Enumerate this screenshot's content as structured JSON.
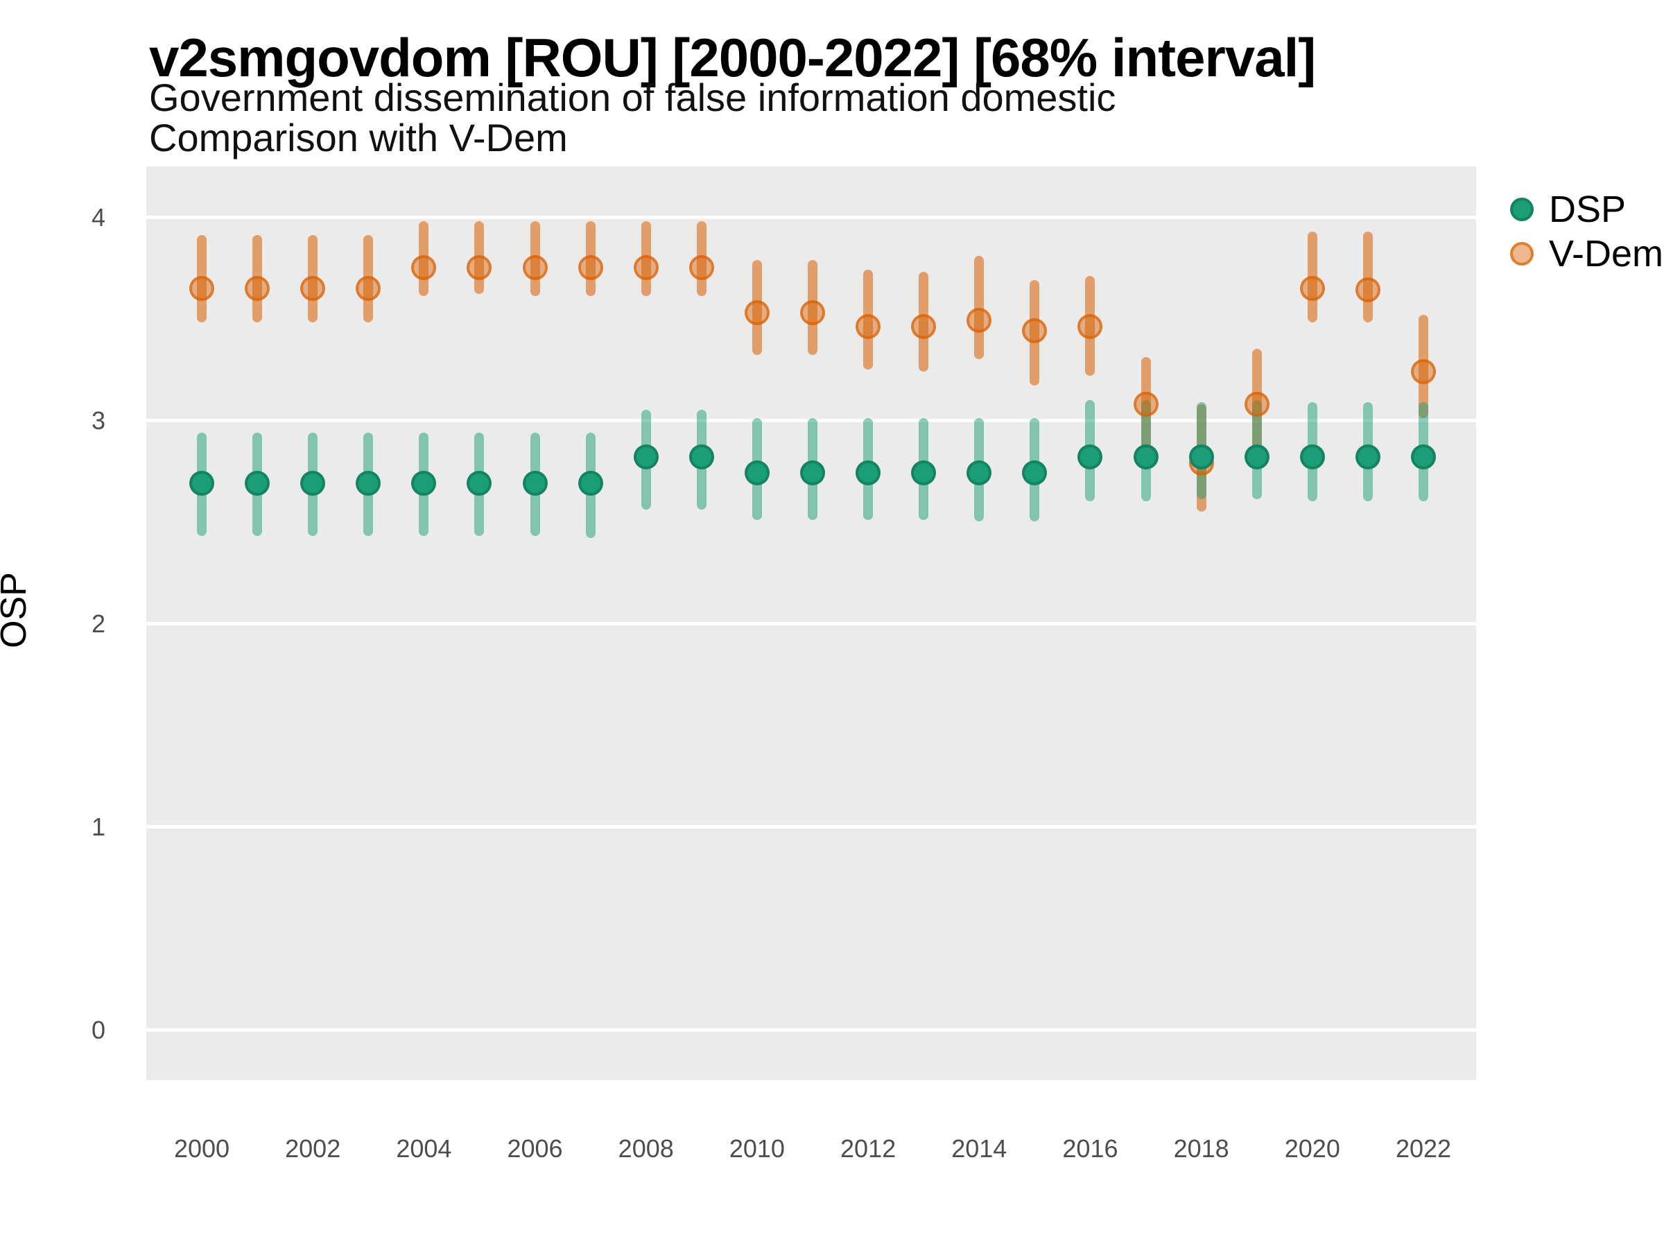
{
  "header": {
    "title": "v2smgovdom [ROU] [2000-2022] [68% interval]",
    "subtitle_line1": "Government dissemination of false information domestic",
    "subtitle_line2": "Comparison with V-Dem"
  },
  "axes": {
    "y_label": "OSP",
    "y_ticks": [
      "0",
      "1",
      "2",
      "3",
      "4"
    ],
    "x_ticks": [
      "2000",
      "2002",
      "2004",
      "2006",
      "2008",
      "2010",
      "2012",
      "2014",
      "2016",
      "2018",
      "2020",
      "2022"
    ]
  },
  "legend": {
    "position": "right",
    "items": [
      {
        "label": "DSP",
        "color": "#1B9E77"
      },
      {
        "label": "V-Dem",
        "color": "#D95F02"
      }
    ]
  },
  "chart_data": {
    "type": "pointrange",
    "title": "v2smgovdom [ROU] [2000-2022] [68% interval]",
    "subtitle": "Government dissemination of false information domestic — Comparison with V-Dem",
    "xlabel": "",
    "ylabel": "OSP",
    "x_range_years": [
      2000,
      2022
    ],
    "ylim": [
      -0.25,
      4.25
    ],
    "y_gridlines": [
      0,
      1,
      2,
      3,
      4
    ],
    "grid": "horizontal-only",
    "panel_background": "#EBEBEB",
    "legend_position": "right-top",
    "interval_level": "68%",
    "years": [
      2000,
      2001,
      2002,
      2003,
      2004,
      2005,
      2006,
      2007,
      2008,
      2009,
      2010,
      2011,
      2012,
      2013,
      2014,
      2015,
      2016,
      2017,
      2018,
      2019,
      2020,
      2021,
      2022
    ],
    "series": [
      {
        "name": "DSP",
        "color": "#1B9E77",
        "points": [
          {
            "year": 2000,
            "est": 2.69,
            "lo": 2.43,
            "hi": 2.94
          },
          {
            "year": 2001,
            "est": 2.69,
            "lo": 2.43,
            "hi": 2.94
          },
          {
            "year": 2002,
            "est": 2.69,
            "lo": 2.43,
            "hi": 2.94
          },
          {
            "year": 2003,
            "est": 2.69,
            "lo": 2.43,
            "hi": 2.94
          },
          {
            "year": 2004,
            "est": 2.69,
            "lo": 2.43,
            "hi": 2.94
          },
          {
            "year": 2005,
            "est": 2.69,
            "lo": 2.43,
            "hi": 2.94
          },
          {
            "year": 2006,
            "est": 2.69,
            "lo": 2.43,
            "hi": 2.94
          },
          {
            "year": 2007,
            "est": 2.69,
            "lo": 2.42,
            "hi": 2.94
          },
          {
            "year": 2008,
            "est": 2.82,
            "lo": 2.56,
            "hi": 3.05
          },
          {
            "year": 2009,
            "est": 2.82,
            "lo": 2.56,
            "hi": 3.05
          },
          {
            "year": 2010,
            "est": 2.74,
            "lo": 2.51,
            "hi": 3.01
          },
          {
            "year": 2011,
            "est": 2.74,
            "lo": 2.51,
            "hi": 3.01
          },
          {
            "year": 2012,
            "est": 2.74,
            "lo": 2.51,
            "hi": 3.01
          },
          {
            "year": 2013,
            "est": 2.74,
            "lo": 2.51,
            "hi": 3.01
          },
          {
            "year": 2014,
            "est": 2.74,
            "lo": 2.5,
            "hi": 3.01
          },
          {
            "year": 2015,
            "est": 2.74,
            "lo": 2.5,
            "hi": 3.01
          },
          {
            "year": 2016,
            "est": 2.82,
            "lo": 2.6,
            "hi": 3.1
          },
          {
            "year": 2017,
            "est": 2.82,
            "lo": 2.6,
            "hi": 3.1
          },
          {
            "year": 2018,
            "est": 2.82,
            "lo": 2.61,
            "hi": 3.09
          },
          {
            "year": 2019,
            "est": 2.82,
            "lo": 2.61,
            "hi": 3.1
          },
          {
            "year": 2020,
            "est": 2.82,
            "lo": 2.6,
            "hi": 3.09
          },
          {
            "year": 2021,
            "est": 2.82,
            "lo": 2.6,
            "hi": 3.09
          },
          {
            "year": 2022,
            "est": 2.82,
            "lo": 2.6,
            "hi": 3.09
          }
        ]
      },
      {
        "name": "V-Dem",
        "color": "#D95F02",
        "points": [
          {
            "year": 2000,
            "est": 3.65,
            "lo": 3.48,
            "hi": 3.91
          },
          {
            "year": 2001,
            "est": 3.65,
            "lo": 3.48,
            "hi": 3.91
          },
          {
            "year": 2002,
            "est": 3.65,
            "lo": 3.48,
            "hi": 3.91
          },
          {
            "year": 2003,
            "est": 3.65,
            "lo": 3.48,
            "hi": 3.91
          },
          {
            "year": 2004,
            "est": 3.75,
            "lo": 3.61,
            "hi": 3.98
          },
          {
            "year": 2005,
            "est": 3.75,
            "lo": 3.62,
            "hi": 3.98
          },
          {
            "year": 2006,
            "est": 3.75,
            "lo": 3.61,
            "hi": 3.98
          },
          {
            "year": 2007,
            "est": 3.75,
            "lo": 3.61,
            "hi": 3.98
          },
          {
            "year": 2008,
            "est": 3.75,
            "lo": 3.61,
            "hi": 3.98
          },
          {
            "year": 2009,
            "est": 3.75,
            "lo": 3.61,
            "hi": 3.98
          },
          {
            "year": 2010,
            "est": 3.53,
            "lo": 3.32,
            "hi": 3.79
          },
          {
            "year": 2011,
            "est": 3.53,
            "lo": 3.32,
            "hi": 3.79
          },
          {
            "year": 2012,
            "est": 3.46,
            "lo": 3.25,
            "hi": 3.74
          },
          {
            "year": 2013,
            "est": 3.46,
            "lo": 3.24,
            "hi": 3.73
          },
          {
            "year": 2014,
            "est": 3.49,
            "lo": 3.3,
            "hi": 3.81
          },
          {
            "year": 2015,
            "est": 3.44,
            "lo": 3.17,
            "hi": 3.69
          },
          {
            "year": 2016,
            "est": 3.46,
            "lo": 3.22,
            "hi": 3.71
          },
          {
            "year": 2017,
            "est": 3.08,
            "lo": 2.8,
            "hi": 3.31
          },
          {
            "year": 2018,
            "est": 2.79,
            "lo": 2.55,
            "hi": 3.08
          },
          {
            "year": 2019,
            "est": 3.08,
            "lo": 2.8,
            "hi": 3.35
          },
          {
            "year": 2020,
            "est": 3.65,
            "lo": 3.48,
            "hi": 3.93
          },
          {
            "year": 2021,
            "est": 3.64,
            "lo": 3.48,
            "hi": 3.93
          },
          {
            "year": 2022,
            "est": 3.24,
            "lo": 3.01,
            "hi": 3.52
          }
        ]
      }
    ]
  }
}
